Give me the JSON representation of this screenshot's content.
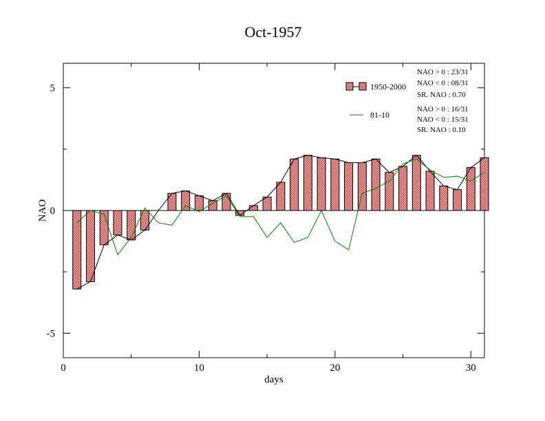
{
  "chart_data": {
    "type": "bar",
    "title": "Oct-1957",
    "xlabel": "days",
    "ylabel": "NAO",
    "xlim": [
      0,
      31
    ],
    "ylim": [
      -6,
      6
    ],
    "x_ticks": [
      0,
      10,
      20,
      30
    ],
    "y_ticks": [
      -5,
      0,
      5
    ],
    "x_tick_labels": [
      "0",
      "10",
      "20",
      "30"
    ],
    "y_tick_labels": [
      "-5",
      "0",
      "5"
    ],
    "grid": false,
    "legend_position": "top-right",
    "days": [
      1,
      2,
      3,
      4,
      5,
      6,
      7,
      8,
      9,
      10,
      11,
      12,
      13,
      14,
      15,
      16,
      17,
      18,
      19,
      20,
      21,
      22,
      23,
      24,
      25,
      26,
      27,
      28,
      29,
      30,
      31
    ],
    "series": [
      {
        "name": "1950-2000",
        "kind": "bar",
        "color": "#e8a0a0",
        "edge_color": "#000000",
        "values": [
          -3.2,
          -2.9,
          -1.4,
          -1.0,
          -1.2,
          -0.8,
          0.0,
          0.7,
          0.8,
          0.6,
          0.4,
          0.7,
          -0.2,
          0.2,
          0.55,
          1.15,
          2.1,
          2.25,
          2.15,
          2.1,
          1.95,
          1.95,
          2.1,
          1.55,
          1.8,
          2.25,
          1.6,
          1.0,
          0.85,
          1.75,
          2.15
        ]
      },
      {
        "name": "81-10",
        "kind": "line",
        "color": "#008000",
        "values": [
          -0.5,
          0.0,
          -0.15,
          -1.8,
          -1.1,
          0.1,
          -0.5,
          -0.6,
          0.2,
          -0.05,
          0.3,
          0.6,
          -0.25,
          -0.25,
          -1.1,
          -0.5,
          -1.3,
          -1.1,
          0.0,
          -1.25,
          -1.6,
          0.7,
          0.9,
          1.2,
          1.9,
          2.1,
          1.65,
          1.35,
          1.4,
          1.2,
          1.55
        ]
      }
    ],
    "stats": [
      {
        "lines": [
          "NAO > 0 : 23/31",
          "NAO < 0 : 08/31",
          "SR. NAO :  0.70"
        ]
      },
      {
        "lines": [
          "NAO > 0 : 16/31",
          "NAO < 0 : 15/31",
          "SR. NAO :  0.10"
        ]
      }
    ]
  }
}
